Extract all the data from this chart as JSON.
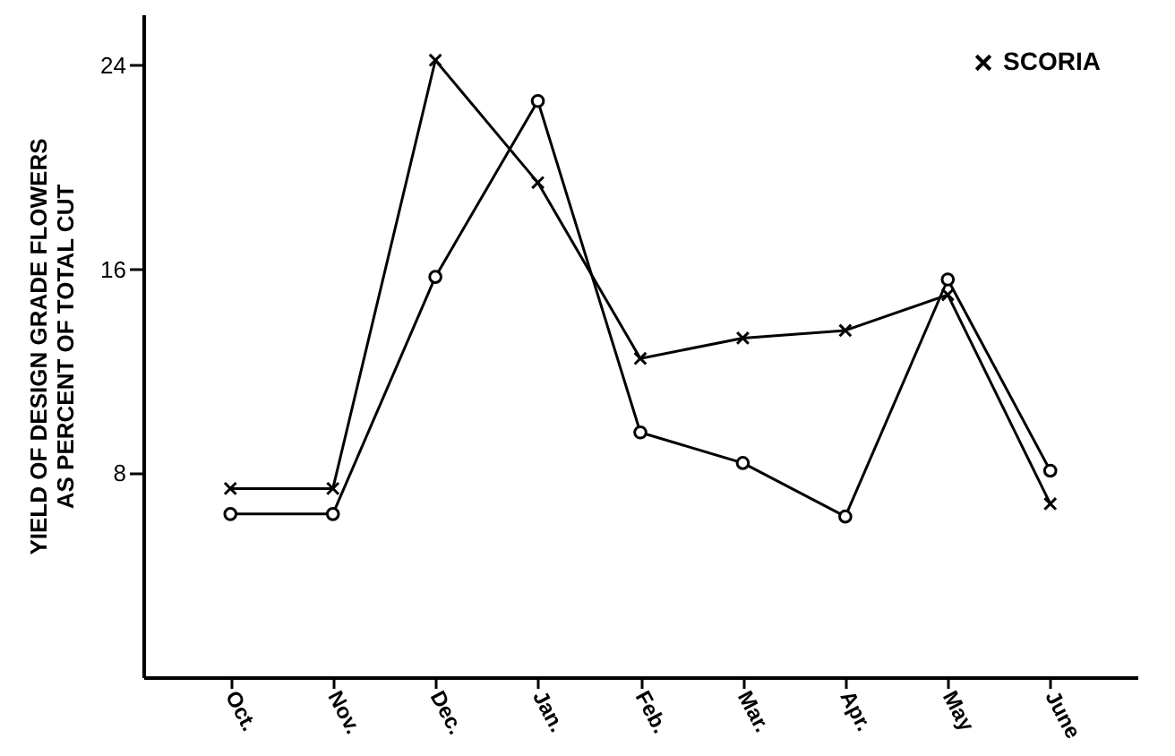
{
  "chart_data": {
    "type": "line",
    "ylabel": "YIELD OF DESIGN GRADE FLOWERS\nAS PERCENT OF TOTAL CUT",
    "categories": [
      "Oct.",
      "Nov.",
      "Dec.",
      "Jan.",
      "Feb.",
      "Mar.",
      "Apr.",
      "May",
      "June"
    ],
    "series": [
      {
        "name": "SCORIA",
        "color": "#000000",
        "marker": "cross",
        "values": [
          7.4,
          7.4,
          24.2,
          19.4,
          12.5,
          13.3,
          13.6,
          15.0,
          6.8
        ]
      },
      {
        "color": "#000000",
        "marker": "circle",
        "values": [
          6.4,
          6.4,
          15.7,
          22.6,
          9.6,
          8.4,
          6.3,
          15.6,
          8.1
        ]
      }
    ],
    "ylim": [
      0,
      26
    ],
    "yticks": [
      8,
      16,
      24
    ],
    "grid": false,
    "legend": "top right",
    "line_style": "solid"
  }
}
